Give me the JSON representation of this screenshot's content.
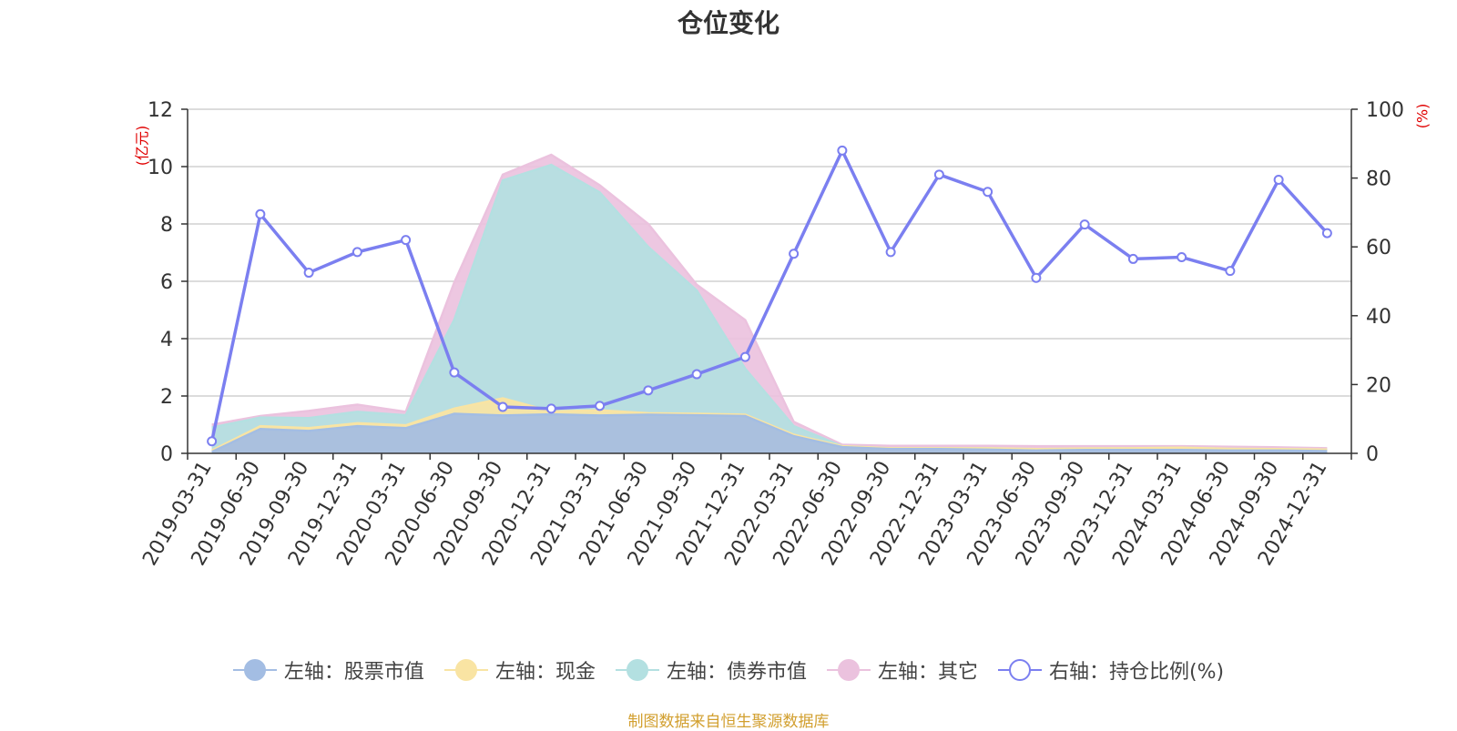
{
  "title": "仓位变化",
  "source_note": "制图数据来自恒生聚源数据库",
  "chart_data": {
    "type": "area",
    "categories": [
      "2019-03-31",
      "2019-06-30",
      "2019-09-30",
      "2019-12-31",
      "2020-03-31",
      "2020-06-30",
      "2020-09-30",
      "2020-12-31",
      "2021-03-31",
      "2021-06-30",
      "2021-09-30",
      "2021-12-31",
      "2022-03-31",
      "2022-06-30",
      "2022-09-30",
      "2022-12-31",
      "2023-03-31",
      "2023-06-30",
      "2023-09-30",
      "2023-12-31",
      "2024-03-31",
      "2024-06-30",
      "2024-09-30",
      "2024-12-31"
    ],
    "left_axis": {
      "unit": "(亿元)",
      "ylim": [
        0,
        12
      ],
      "ticks": [
        "0",
        "2",
        "4",
        "6",
        "8",
        "10",
        "12"
      ]
    },
    "right_axis": {
      "unit": "(%)",
      "ylim": [
        0,
        100
      ],
      "ticks": [
        "0",
        "20",
        "40",
        "60",
        "80",
        "100"
      ]
    },
    "grid": true,
    "legend_position": "bottom",
    "series": [
      {
        "name": "左轴：股票市值",
        "axis": "left",
        "kind": "stacked-area",
        "color": "#a3bde3",
        "values": [
          0.05,
          0.85,
          0.78,
          0.95,
          0.88,
          1.38,
          1.32,
          1.36,
          1.32,
          1.35,
          1.33,
          1.3,
          0.6,
          0.22,
          0.15,
          0.15,
          0.13,
          0.1,
          0.12,
          0.12,
          0.12,
          0.1,
          0.1,
          0.08
        ]
      },
      {
        "name": "左轴：现金",
        "axis": "left",
        "kind": "stacked-area",
        "color": "#f9e4a3",
        "values": [
          0.05,
          0.1,
          0.1,
          0.1,
          0.1,
          0.18,
          0.6,
          0.1,
          0.18,
          0.05,
          0.05,
          0.05,
          0.05,
          0.03,
          0.03,
          0.03,
          0.05,
          0.05,
          0.05,
          0.06,
          0.08,
          0.06,
          0.05,
          0.05
        ]
      },
      {
        "name": "左轴：债券市值",
        "axis": "left",
        "kind": "stacked-area",
        "color": "#b3e0e1",
        "values": [
          0.8,
          0.3,
          0.35,
          0.4,
          0.35,
          3.1,
          7.6,
          8.6,
          7.6,
          5.8,
          4.3,
          1.6,
          0.3,
          0.0,
          0.0,
          0.0,
          0.0,
          0.0,
          0.0,
          0.0,
          0.0,
          0.0,
          0.0,
          0.0
        ]
      },
      {
        "name": "左轴：其它",
        "axis": "left",
        "kind": "stacked-area",
        "color": "#ebc2de",
        "values": [
          0.1,
          0.05,
          0.25,
          0.25,
          0.12,
          1.3,
          0.2,
          0.35,
          0.25,
          0.8,
          0.2,
          1.7,
          0.15,
          0.05,
          0.08,
          0.08,
          0.08,
          0.1,
          0.08,
          0.07,
          0.05,
          0.07,
          0.06,
          0.05
        ]
      },
      {
        "name": "右轴：持仓比例(%)",
        "axis": "right",
        "kind": "line",
        "color": "#7b7ff0",
        "values": [
          3.5,
          69.5,
          52.5,
          58.5,
          62,
          23.5,
          13.5,
          13,
          13.8,
          18.3,
          23,
          28,
          58,
          88,
          58.5,
          81,
          76,
          51,
          66.5,
          56.5,
          57,
          53,
          79.5,
          64
        ]
      }
    ]
  }
}
